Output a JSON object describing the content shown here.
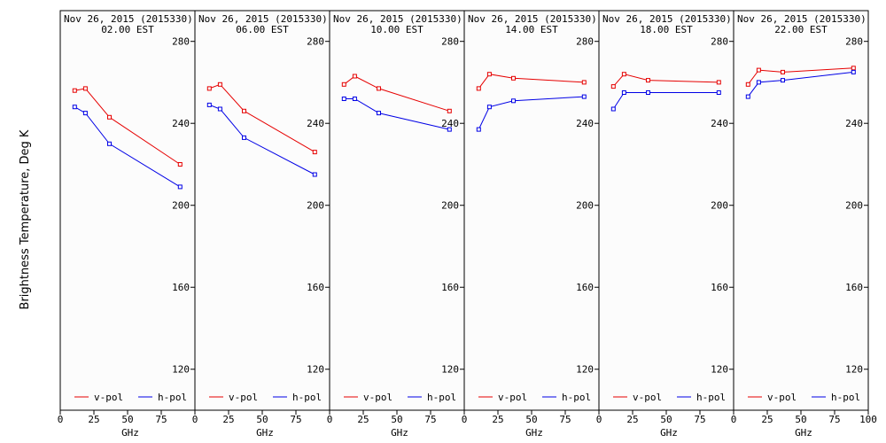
{
  "figure": {
    "ylabel": "Brightness Temperature, Deg K",
    "xlabel": "GHz"
  },
  "colors": {
    "vpol": "#e60000",
    "hpol": "#0000e6",
    "frame": "#000000",
    "background": "#fcfcfc"
  },
  "chart_data": [
    {
      "type": "line",
      "title": "Nov 26, 2015 (2015330)",
      "subtitle": "02.00 EST",
      "xlabel": "GHz",
      "ylabel": "Brightness Temperature, Deg K",
      "xlim": [
        0,
        100
      ],
      "ylim": [
        100,
        295
      ],
      "xticks": [
        0,
        25,
        50,
        75,
        100
      ],
      "yticks": [
        120,
        160,
        200,
        240,
        280
      ],
      "legend": "bottom",
      "x": [
        10.7,
        18.7,
        36.5,
        89.0
      ],
      "series": [
        {
          "name": "v-pol",
          "values": [
            256,
            257,
            243,
            220
          ]
        },
        {
          "name": "h-pol",
          "values": [
            248,
            245,
            230,
            209
          ]
        }
      ]
    },
    {
      "type": "line",
      "title": "Nov 26, 2015 (2015330)",
      "subtitle": "06.00 EST",
      "xlabel": "GHz",
      "ylabel": "Brightness Temperature, Deg K",
      "xlim": [
        0,
        100
      ],
      "ylim": [
        100,
        295
      ],
      "xticks": [
        0,
        25,
        50,
        75,
        100
      ],
      "yticks": [
        120,
        160,
        200,
        240,
        280
      ],
      "legend": "bottom",
      "x": [
        10.7,
        18.7,
        36.5,
        89.0
      ],
      "series": [
        {
          "name": "v-pol",
          "values": [
            257,
            259,
            246,
            226
          ]
        },
        {
          "name": "h-pol",
          "values": [
            249,
            247,
            233,
            215
          ]
        }
      ]
    },
    {
      "type": "line",
      "title": "Nov 26, 2015 (2015330)",
      "subtitle": "10.00 EST",
      "xlabel": "GHz",
      "ylabel": "Brightness Temperature, Deg K",
      "xlim": [
        0,
        100
      ],
      "ylim": [
        100,
        295
      ],
      "xticks": [
        0,
        25,
        50,
        75,
        100
      ],
      "yticks": [
        120,
        160,
        200,
        240,
        280
      ],
      "legend": "bottom",
      "x": [
        10.7,
        18.7,
        36.5,
        89.0
      ],
      "series": [
        {
          "name": "v-pol",
          "values": [
            259,
            263,
            257,
            246
          ]
        },
        {
          "name": "h-pol",
          "values": [
            252,
            252,
            245,
            237
          ]
        }
      ]
    },
    {
      "type": "line",
      "title": "Nov 26, 2015 (2015330)",
      "subtitle": "14.00 EST",
      "xlabel": "GHz",
      "ylabel": "Brightness Temperature, Deg K",
      "xlim": [
        0,
        100
      ],
      "ylim": [
        100,
        295
      ],
      "xticks": [
        0,
        25,
        50,
        75,
        100
      ],
      "yticks": [
        120,
        160,
        200,
        240,
        280
      ],
      "legend": "bottom",
      "x": [
        10.7,
        18.7,
        36.5,
        89.0
      ],
      "series": [
        {
          "name": "v-pol",
          "values": [
            257,
            264,
            262,
            260
          ]
        },
        {
          "name": "h-pol",
          "values": [
            237,
            248,
            251,
            253
          ]
        }
      ]
    },
    {
      "type": "line",
      "title": "Nov 26, 2015 (2015330)",
      "subtitle": "18.00 EST",
      "xlabel": "GHz",
      "ylabel": "Brightness Temperature, Deg K",
      "xlim": [
        0,
        100
      ],
      "ylim": [
        100,
        295
      ],
      "xticks": [
        0,
        25,
        50,
        75,
        100
      ],
      "yticks": [
        120,
        160,
        200,
        240,
        280
      ],
      "legend": "bottom",
      "x": [
        10.7,
        18.7,
        36.5,
        89.0
      ],
      "series": [
        {
          "name": "v-pol",
          "values": [
            258,
            264,
            261,
            260
          ]
        },
        {
          "name": "h-pol",
          "values": [
            247,
            255,
            255,
            255
          ]
        }
      ]
    },
    {
      "type": "line",
      "title": "Nov 26, 2015 (2015330)",
      "subtitle": "22.00 EST",
      "xlabel": "GHz",
      "ylabel": "Brightness Temperature, Deg K",
      "xlim": [
        0,
        100
      ],
      "ylim": [
        100,
        295
      ],
      "xticks": [
        0,
        25,
        50,
        75,
        100
      ],
      "yticks": [
        120,
        160,
        200,
        240,
        280
      ],
      "legend": "bottom",
      "x": [
        10.7,
        18.7,
        36.5,
        89.0
      ],
      "series": [
        {
          "name": "v-pol",
          "values": [
            259,
            266,
            265,
            267
          ]
        },
        {
          "name": "h-pol",
          "values": [
            253,
            260,
            261,
            265
          ]
        }
      ]
    }
  ]
}
